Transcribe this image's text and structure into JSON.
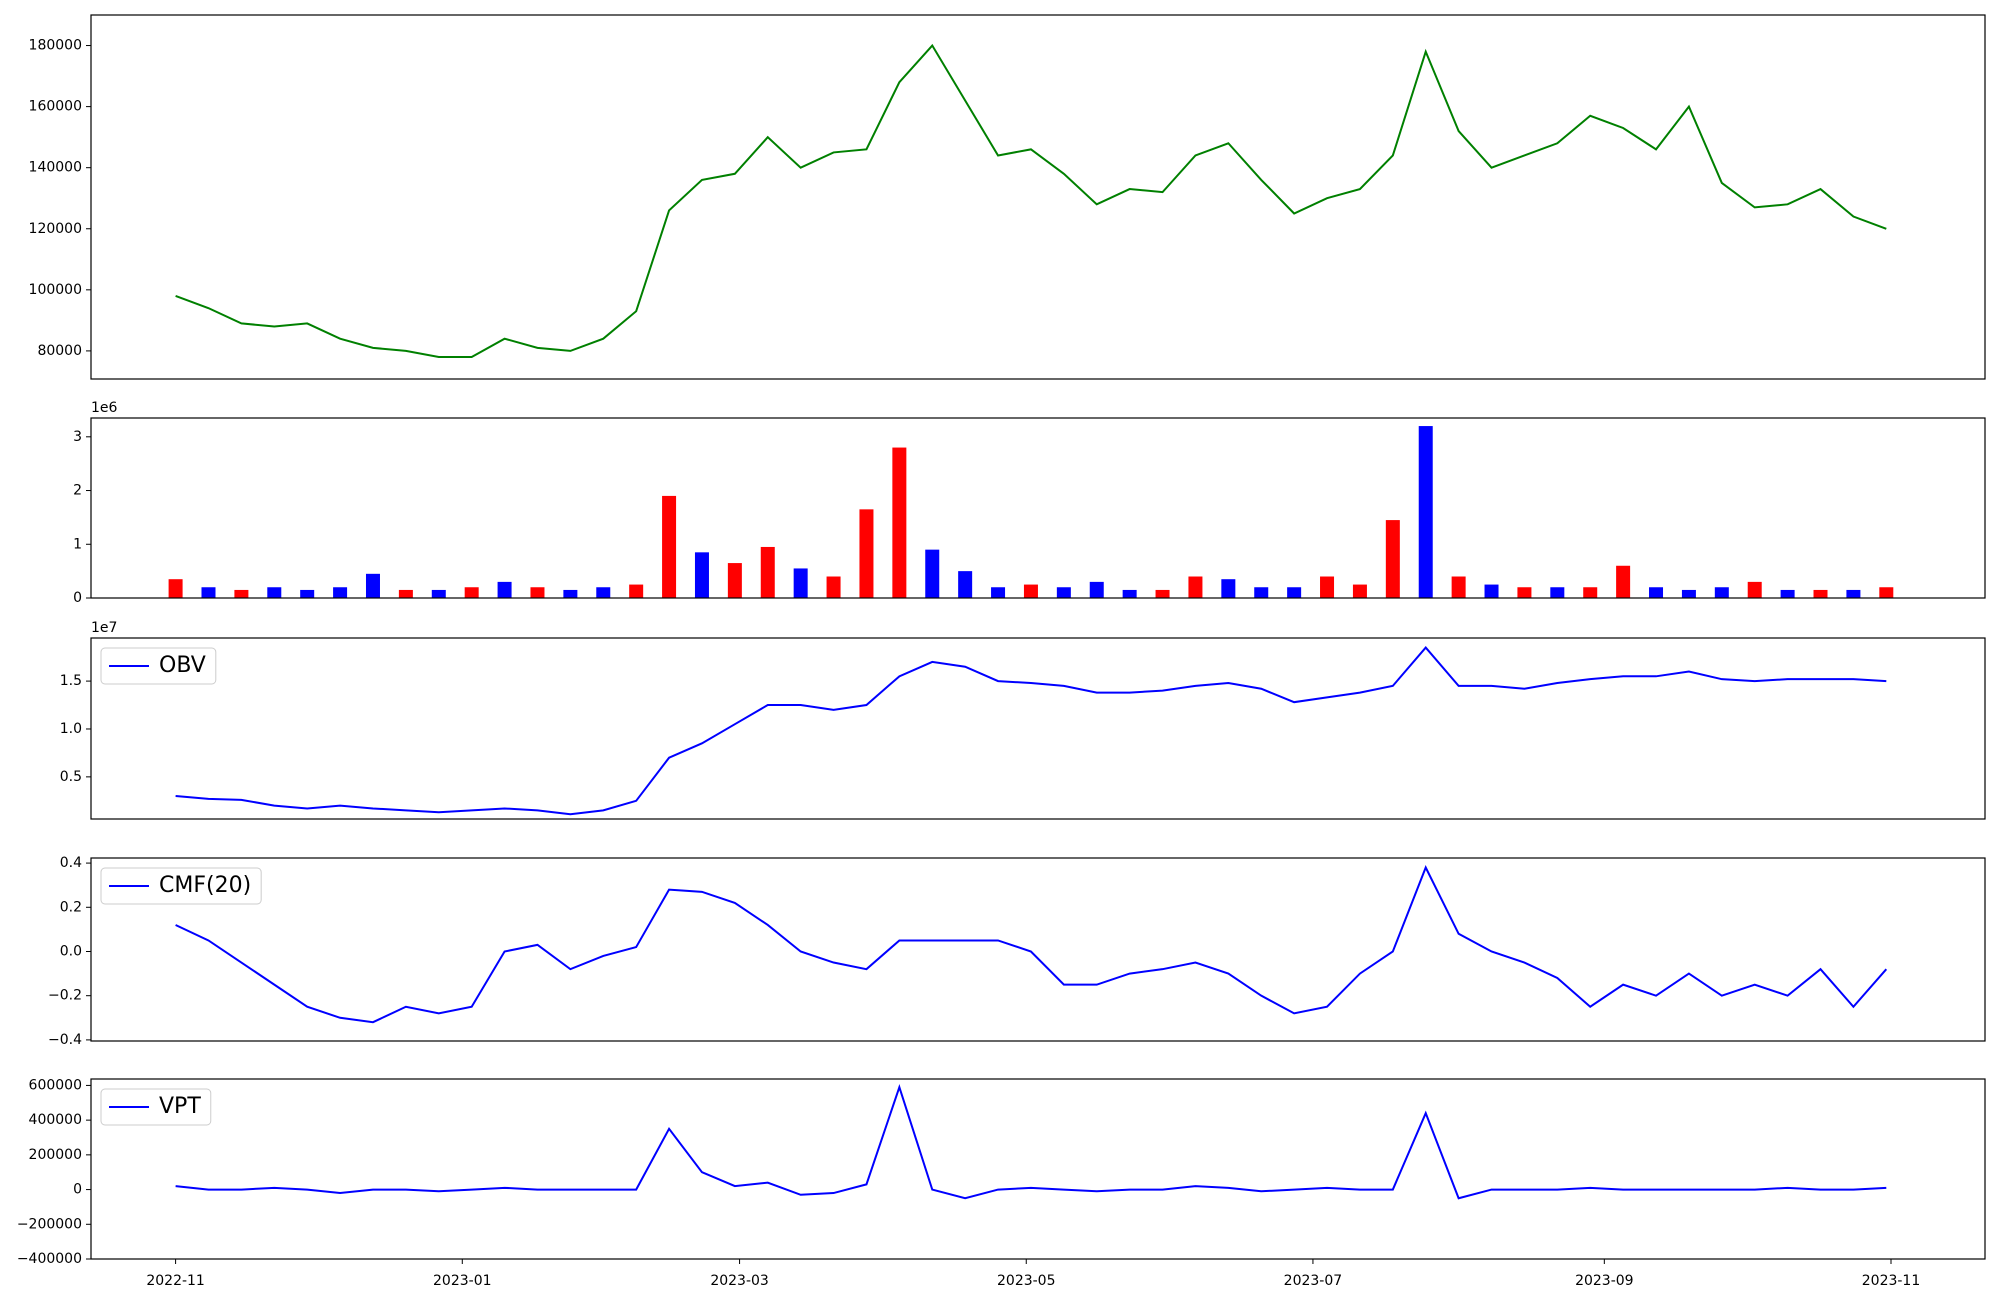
{
  "chart_data": [
    {
      "type": "line",
      "x": [
        "2022-11-01",
        "2022-11-08",
        "2022-11-15",
        "2022-11-22",
        "2022-11-29",
        "2022-12-06",
        "2022-12-13",
        "2022-12-20",
        "2022-12-27",
        "2023-01-03",
        "2023-01-10",
        "2023-01-17",
        "2023-01-24",
        "2023-01-31",
        "2023-02-07",
        "2023-02-14",
        "2023-02-21",
        "2023-02-28",
        "2023-03-07",
        "2023-03-14",
        "2023-03-21",
        "2023-03-28",
        "2023-04-04",
        "2023-04-11",
        "2023-04-18",
        "2023-04-25",
        "2023-05-02",
        "2023-05-09",
        "2023-05-16",
        "2023-05-23",
        "2023-05-30",
        "2023-06-06",
        "2023-06-13",
        "2023-06-20",
        "2023-06-27",
        "2023-07-04",
        "2023-07-11",
        "2023-07-18",
        "2023-07-25",
        "2023-08-01",
        "2023-08-08",
        "2023-08-15",
        "2023-08-22",
        "2023-08-29",
        "2023-09-05",
        "2023-09-12",
        "2023-09-19",
        "2023-09-26",
        "2023-10-03",
        "2023-10-10",
        "2023-10-17",
        "2023-10-24",
        "2023-10-31"
      ],
      "series": [
        {
          "color": "#008000",
          "values": [
            98000,
            94000,
            89000,
            88000,
            89000,
            84000,
            81000,
            80000,
            78000,
            78000,
            84000,
            81000,
            80000,
            84000,
            93000,
            126000,
            136000,
            138000,
            150000,
            140000,
            145000,
            146000,
            168000,
            180000,
            162000,
            144000,
            146000,
            138000,
            128000,
            133000,
            132000,
            144000,
            148000,
            136000,
            125000,
            130000,
            133000,
            144000,
            178000,
            152000,
            140000,
            144000,
            148000,
            157000,
            153000,
            146000,
            160000,
            135000,
            127000,
            128000,
            133000,
            124000,
            120000
          ]
        }
      ],
      "xlim": [
        "2022-10-14",
        "2023-11-21"
      ],
      "ylim": [
        70800,
        190000
      ],
      "yticks": [
        80000,
        100000,
        120000,
        140000,
        160000,
        180000
      ]
    },
    {
      "type": "bar",
      "x": [
        "2022-11-01",
        "2022-11-08",
        "2022-11-15",
        "2022-11-22",
        "2022-11-29",
        "2022-12-06",
        "2022-12-13",
        "2022-12-20",
        "2022-12-27",
        "2023-01-03",
        "2023-01-10",
        "2023-01-17",
        "2023-01-24",
        "2023-01-31",
        "2023-02-07",
        "2023-02-14",
        "2023-02-21",
        "2023-02-28",
        "2023-03-07",
        "2023-03-14",
        "2023-03-21",
        "2023-03-28",
        "2023-04-04",
        "2023-04-11",
        "2023-04-18",
        "2023-04-25",
        "2023-05-02",
        "2023-05-09",
        "2023-05-16",
        "2023-05-23",
        "2023-05-30",
        "2023-06-06",
        "2023-06-13",
        "2023-06-20",
        "2023-06-27",
        "2023-07-04",
        "2023-07-11",
        "2023-07-18",
        "2023-07-25",
        "2023-08-01",
        "2023-08-08",
        "2023-08-15",
        "2023-08-22",
        "2023-08-29",
        "2023-09-05",
        "2023-09-12",
        "2023-09-19",
        "2023-09-26",
        "2023-10-03",
        "2023-10-10",
        "2023-10-17",
        "2023-10-24",
        "2023-10-31"
      ],
      "values": [
        350000,
        200000,
        150000,
        200000,
        150000,
        200000,
        450000,
        150000,
        150000,
        200000,
        300000,
        200000,
        150000,
        200000,
        250000,
        1900000,
        850000,
        650000,
        950000,
        550000,
        400000,
        1650000,
        2800000,
        900000,
        500000,
        200000,
        250000,
        200000,
        300000,
        150000,
        150000,
        400000,
        350000,
        200000,
        200000,
        400000,
        250000,
        1450000,
        3200000,
        400000,
        250000,
        200000,
        200000,
        200000,
        600000,
        200000,
        150000,
        200000,
        300000,
        150000,
        150000,
        150000,
        200000
      ],
      "colors": [
        "red",
        "blue",
        "red",
        "blue",
        "blue",
        "blue",
        "blue",
        "red",
        "blue",
        "red",
        "blue",
        "red",
        "blue",
        "blue",
        "red",
        "red",
        "blue",
        "red",
        "red",
        "blue",
        "red",
        "red",
        "red",
        "blue",
        "blue",
        "blue",
        "red",
        "blue",
        "blue",
        "blue",
        "red",
        "red",
        "blue",
        "blue",
        "blue",
        "red",
        "red",
        "red",
        "blue",
        "red",
        "blue",
        "red",
        "blue",
        "red",
        "red",
        "blue",
        "blue",
        "blue",
        "red",
        "blue",
        "red",
        "blue",
        "red"
      ],
      "xlim": [
        "2022-10-14",
        "2023-11-21"
      ],
      "ylim": [
        0,
        3350000
      ],
      "yticks": [
        0,
        {
          "value": 1000000,
          "label": "1"
        },
        {
          "value": 2000000,
          "label": "2"
        },
        {
          "value": 3000000,
          "label": "3"
        }
      ],
      "offset_text": "1e6"
    },
    {
      "type": "line",
      "x": [
        "2022-11-01",
        "2022-11-08",
        "2022-11-15",
        "2022-11-22",
        "2022-11-29",
        "2022-12-06",
        "2022-12-13",
        "2022-12-20",
        "2022-12-27",
        "2023-01-03",
        "2023-01-10",
        "2023-01-17",
        "2023-01-24",
        "2023-01-31",
        "2023-02-07",
        "2023-02-14",
        "2023-02-21",
        "2023-02-28",
        "2023-03-07",
        "2023-03-14",
        "2023-03-21",
        "2023-03-28",
        "2023-04-04",
        "2023-04-11",
        "2023-04-18",
        "2023-04-25",
        "2023-05-02",
        "2023-05-09",
        "2023-05-16",
        "2023-05-23",
        "2023-05-30",
        "2023-06-06",
        "2023-06-13",
        "2023-06-20",
        "2023-06-27",
        "2023-07-04",
        "2023-07-11",
        "2023-07-18",
        "2023-07-25",
        "2023-08-01",
        "2023-08-08",
        "2023-08-15",
        "2023-08-22",
        "2023-08-29",
        "2023-09-05",
        "2023-09-12",
        "2023-09-19",
        "2023-09-26",
        "2023-10-03",
        "2023-10-10",
        "2023-10-17",
        "2023-10-24",
        "2023-10-31"
      ],
      "series": [
        {
          "name": "OBV",
          "color": "#0000ff",
          "values": [
            3000000,
            2700000,
            2600000,
            2000000,
            1700000,
            2000000,
            1700000,
            1500000,
            1300000,
            1500000,
            1700000,
            1500000,
            1100000,
            1500000,
            2500000,
            7000000,
            8500000,
            10500000,
            12500000,
            12500000,
            12000000,
            12500000,
            15500000,
            17000000,
            16500000,
            15000000,
            14800000,
            14500000,
            13800000,
            13800000,
            14000000,
            14500000,
            14800000,
            14200000,
            12800000,
            13300000,
            13800000,
            14500000,
            18500000,
            14500000,
            14500000,
            14200000,
            14800000,
            15200000,
            15500000,
            15500000,
            16000000,
            15200000,
            15000000,
            15200000,
            15200000,
            15200000,
            15000000
          ]
        }
      ],
      "xlim": [
        "2022-10-14",
        "2023-11-21"
      ],
      "ylim": [
        600000,
        19500000
      ],
      "yticks": [
        {
          "value": 5000000,
          "label": "0.5"
        },
        {
          "value": 10000000,
          "label": "1.0"
        },
        {
          "value": 15000000,
          "label": "1.5"
        }
      ],
      "offset_text": "1e7",
      "legend": "upper left"
    },
    {
      "type": "line",
      "x": [
        "2022-11-01",
        "2022-11-08",
        "2022-11-15",
        "2022-11-22",
        "2022-11-29",
        "2022-12-06",
        "2022-12-13",
        "2022-12-20",
        "2022-12-27",
        "2023-01-03",
        "2023-01-10",
        "2023-01-17",
        "2023-01-24",
        "2023-01-31",
        "2023-02-07",
        "2023-02-14",
        "2023-02-21",
        "2023-02-28",
        "2023-03-07",
        "2023-03-14",
        "2023-03-21",
        "2023-03-28",
        "2023-04-04",
        "2023-04-11",
        "2023-04-18",
        "2023-04-25",
        "2023-05-02",
        "2023-05-09",
        "2023-05-16",
        "2023-05-23",
        "2023-05-30",
        "2023-06-06",
        "2023-06-13",
        "2023-06-20",
        "2023-06-27",
        "2023-07-04",
        "2023-07-11",
        "2023-07-18",
        "2023-07-25",
        "2023-08-01",
        "2023-08-08",
        "2023-08-15",
        "2023-08-22",
        "2023-08-29",
        "2023-09-05",
        "2023-09-12",
        "2023-09-19",
        "2023-09-26",
        "2023-10-03",
        "2023-10-10",
        "2023-10-17",
        "2023-10-24",
        "2023-10-31"
      ],
      "series": [
        {
          "name": "CMF(20)",
          "color": "#0000ff",
          "values": [
            0.12,
            0.05,
            -0.05,
            -0.15,
            -0.25,
            -0.3,
            -0.32,
            -0.25,
            -0.28,
            -0.25,
            0.0,
            0.03,
            -0.08,
            -0.02,
            0.02,
            0.28,
            0.27,
            0.22,
            0.12,
            0.0,
            -0.05,
            -0.08,
            0.05,
            0.05,
            0.05,
            0.05,
            0.0,
            -0.15,
            -0.15,
            -0.1,
            -0.08,
            -0.05,
            -0.1,
            -0.2,
            -0.28,
            -0.25,
            -0.1,
            0.0,
            0.38,
            0.08,
            0.0,
            -0.05,
            -0.12,
            -0.25,
            -0.15,
            -0.2,
            -0.1,
            -0.2,
            -0.15,
            -0.2,
            -0.08,
            -0.25,
            -0.08
          ]
        }
      ],
      "xlim": [
        "2022-10-14",
        "2023-11-21"
      ],
      "ylim": [
        -0.405,
        0.423
      ],
      "yticks": [
        {
          "value": -0.4,
          "label": "−0.4"
        },
        {
          "value": -0.2,
          "label": "−0.2"
        },
        {
          "value": 0,
          "label": "0.0"
        },
        0.2,
        0.4
      ],
      "legend": "upper left"
    },
    {
      "type": "line",
      "x": [
        "2022-11-01",
        "2022-11-08",
        "2022-11-15",
        "2022-11-22",
        "2022-11-29",
        "2022-12-06",
        "2022-12-13",
        "2022-12-20",
        "2022-12-27",
        "2023-01-03",
        "2023-01-10",
        "2023-01-17",
        "2023-01-24",
        "2023-01-31",
        "2023-02-07",
        "2023-02-14",
        "2023-02-21",
        "2023-02-28",
        "2023-03-07",
        "2023-03-14",
        "2023-03-21",
        "2023-03-28",
        "2023-04-04",
        "2023-04-11",
        "2023-04-18",
        "2023-04-25",
        "2023-05-02",
        "2023-05-09",
        "2023-05-16",
        "2023-05-23",
        "2023-05-30",
        "2023-06-06",
        "2023-06-13",
        "2023-06-20",
        "2023-06-27",
        "2023-07-04",
        "2023-07-11",
        "2023-07-18",
        "2023-07-25",
        "2023-08-01",
        "2023-08-08",
        "2023-08-15",
        "2023-08-22",
        "2023-08-29",
        "2023-09-05",
        "2023-09-12",
        "2023-09-19",
        "2023-09-26",
        "2023-10-03",
        "2023-10-10",
        "2023-10-17",
        "2023-10-24",
        "2023-10-31"
      ],
      "series": [
        {
          "name": "VPT",
          "color": "#0000ff",
          "values": [
            20000,
            0,
            0,
            10000,
            0,
            -20000,
            0,
            0,
            -10000,
            0,
            10000,
            0,
            0,
            0,
            0,
            350000,
            100000,
            20000,
            40000,
            -30000,
            -20000,
            30000,
            590000,
            0,
            -50000,
            0,
            10000,
            0,
            -10000,
            0,
            0,
            20000,
            10000,
            -10000,
            0,
            10000,
            0,
            0,
            440000,
            -50000,
            0,
            0,
            0,
            10000,
            0,
            0,
            0,
            0,
            0,
            10000,
            0,
            0,
            10000
          ]
        }
      ],
      "xlim": [
        "2022-10-14",
        "2023-11-21"
      ],
      "ylim": [
        -400000,
        637000
      ],
      "yticks": [
        {
          "value": -400000,
          "label": "−400000"
        },
        {
          "value": -200000,
          "label": "−200000"
        },
        0,
        200000,
        400000,
        600000
      ],
      "xticks": [
        {
          "value": "2022-11-01",
          "label": "2022-11"
        },
        {
          "value": "2023-01-01",
          "label": "2023-01"
        },
        {
          "value": "2023-03-01",
          "label": "2023-03"
        },
        {
          "value": "2023-05-01",
          "label": "2023-05"
        },
        {
          "value": "2023-07-01",
          "label": "2023-07"
        },
        {
          "value": "2023-09-01",
          "label": "2023-09"
        },
        {
          "value": "2023-11-01",
          "label": "2023-11"
        }
      ],
      "legend": "upper left"
    }
  ]
}
